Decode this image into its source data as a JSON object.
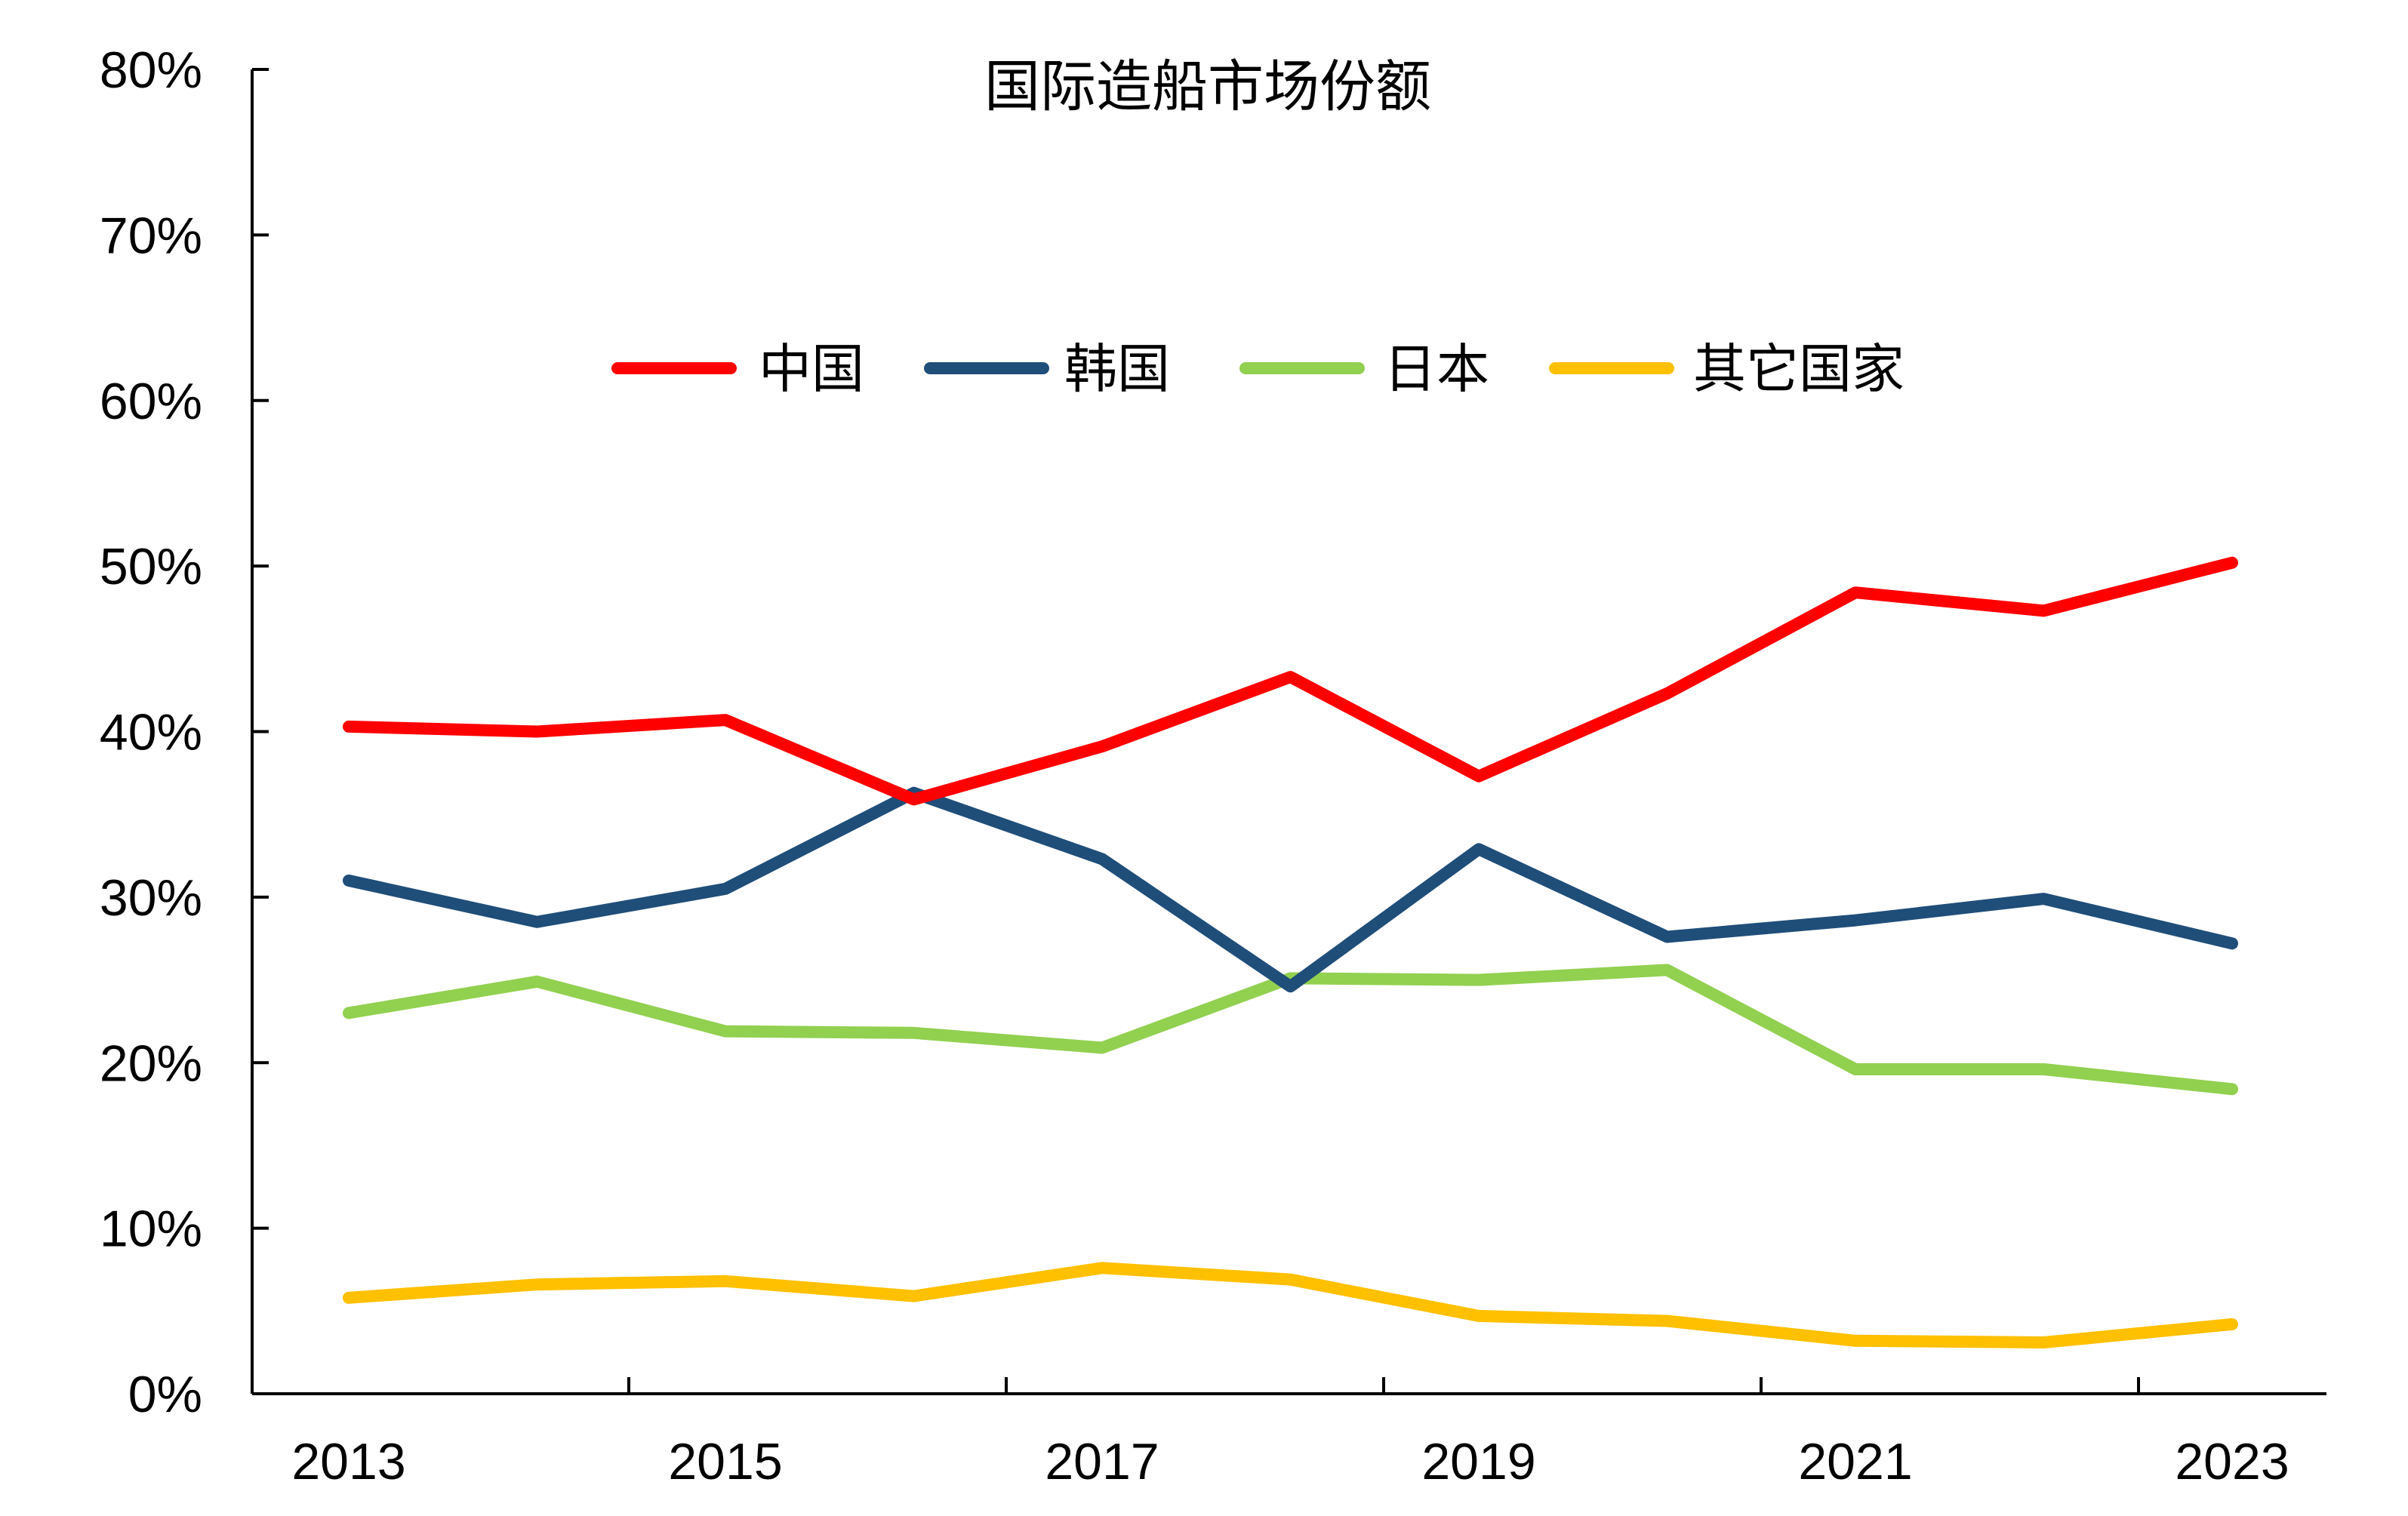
{
  "chart_data": {
    "type": "line",
    "title": "国际造船市场份额",
    "x": [
      2013,
      2014,
      2015,
      2016,
      2017,
      2018,
      2019,
      2020,
      2021,
      2022,
      2023
    ],
    "x_tick_labels": [
      "2013",
      "2015",
      "2017",
      "2019",
      "2021",
      "2023"
    ],
    "y_tick_labels": [
      "0%",
      "10%",
      "20%",
      "30%",
      "40%",
      "50%",
      "60%",
      "70%",
      "80%"
    ],
    "ylim": [
      0,
      80
    ],
    "y_unit": "%",
    "xlabel": "",
    "ylabel": "",
    "grid": false,
    "legend_position": "top-center",
    "series": [
      {
        "name": "中国",
        "color": "#FF0000",
        "values": [
          40.3,
          40.0,
          40.7,
          35.9,
          39.1,
          43.3,
          37.3,
          42.3,
          48.4,
          47.3,
          50.2
        ]
      },
      {
        "name": "韩国",
        "color": "#1F4E79",
        "values": [
          31.0,
          28.5,
          30.5,
          36.3,
          32.3,
          24.6,
          32.9,
          27.6,
          28.6,
          29.9,
          27.2
        ]
      },
      {
        "name": "日本",
        "color": "#92D050",
        "values": [
          23.0,
          24.9,
          21.9,
          21.8,
          20.9,
          25.1,
          25.0,
          25.6,
          19.6,
          19.6,
          18.4
        ]
      },
      {
        "name": "其它国家",
        "color": "#FFC000",
        "values": [
          5.8,
          6.6,
          6.8,
          5.9,
          7.6,
          6.9,
          4.7,
          4.4,
          3.2,
          3.1,
          4.2
        ]
      }
    ]
  }
}
